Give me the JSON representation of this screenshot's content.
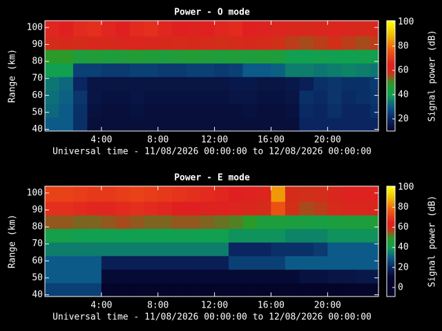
{
  "chart_data": [
    {
      "type": "heatmap",
      "title": "Power - O mode",
      "xlabel": "Universal time - 11/08/2026 00:00:00 to 12/08/2026 00:00:00",
      "ylabel": "Range (km)",
      "colorbar_label": "Signal power (dB)",
      "x_bins": [
        0,
        1,
        2,
        3,
        4,
        5,
        6,
        7,
        8,
        9,
        10,
        11,
        12,
        13,
        14,
        15,
        16,
        17,
        18,
        19,
        20,
        21,
        22,
        23,
        23.6
      ],
      "y_bins": [
        39,
        47,
        55,
        63,
        71,
        79,
        87,
        95,
        104
      ],
      "z": [
        [
          30,
          30,
          22,
          13,
          13,
          13,
          13,
          13,
          13,
          13,
          13,
          13,
          13,
          13,
          13,
          13,
          13,
          13,
          20,
          20,
          20,
          20,
          20,
          20
        ],
        [
          32,
          30,
          22,
          14,
          13,
          13,
          14,
          13,
          13,
          13,
          13,
          13,
          13,
          13,
          14,
          13,
          13,
          14,
          21,
          20,
          22,
          20,
          20,
          22
        ],
        [
          33,
          31,
          23,
          15,
          14,
          14,
          15,
          14,
          14,
          14,
          14,
          14,
          14,
          15,
          15,
          14,
          14,
          15,
          22,
          21,
          23,
          21,
          22,
          23
        ],
        [
          34,
          32,
          20,
          15,
          15,
          15,
          15,
          15,
          15,
          15,
          15,
          15,
          15,
          16,
          16,
          15,
          15,
          16,
          18,
          22,
          23,
          22,
          22,
          24
        ],
        [
          40,
          40,
          25,
          25,
          24,
          24,
          25,
          25,
          24,
          24,
          25,
          25,
          24,
          25,
          30,
          30,
          31,
          35,
          35,
          34,
          35,
          36,
          35,
          34
        ],
        [
          50,
          50,
          45,
          46,
          45,
          46,
          47,
          46,
          45,
          46,
          47,
          46,
          45,
          46,
          45,
          46,
          45,
          40,
          40,
          41,
          40,
          40,
          41,
          40
        ],
        [
          60,
          61,
          60,
          62,
          61,
          62,
          63,
          62,
          61,
          60,
          61,
          60,
          59,
          60,
          61,
          60,
          58,
          57,
          56,
          57,
          58,
          57,
          56,
          57
        ],
        [
          66,
          65,
          67,
          68,
          66,
          65,
          67,
          68,
          66,
          65,
          64,
          65,
          66,
          67,
          65,
          64,
          63,
          62,
          61,
          62,
          63,
          62,
          61,
          62
        ]
      ],
      "xlim": [
        0,
        23.6
      ],
      "xticks": [
        {
          "value": 4,
          "label": "4:00"
        },
        {
          "value": 8,
          "label": "8:00"
        },
        {
          "value": 12,
          "label": "12:00"
        },
        {
          "value": 16,
          "label": "16:00"
        },
        {
          "value": 20,
          "label": "20:00"
        }
      ],
      "ylim": [
        39,
        104
      ],
      "yticks": [
        40,
        50,
        60,
        70,
        80,
        90,
        100
      ],
      "zlim": [
        10,
        101
      ],
      "zticks": [
        20,
        40,
        60,
        80,
        100
      ],
      "colorscale": [
        [
          10,
          "#05052a"
        ],
        [
          20,
          "#0a2560"
        ],
        [
          30,
          "#0c5a88"
        ],
        [
          40,
          "#10a050"
        ],
        [
          50,
          "#2a9a28"
        ],
        [
          58,
          "#d03018"
        ],
        [
          65,
          "#e02020"
        ],
        [
          78,
          "#f06010"
        ],
        [
          90,
          "#f0c000"
        ],
        [
          101,
          "#ffff00"
        ]
      ]
    },
    {
      "type": "heatmap",
      "title": "Power - E mode",
      "xlabel": "Universal time - 11/08/2026 00:00:00 to 12/08/2026 00:00:00",
      "ylabel": "Range (km)",
      "colorbar_label": "Signal power (dB)",
      "x_bins": [
        0,
        1,
        2,
        3,
        4,
        5,
        6,
        7,
        8,
        9,
        10,
        11,
        12,
        13,
        14,
        15,
        16,
        17,
        18,
        19,
        20,
        21,
        22,
        23,
        23.6
      ],
      "y_bins": [
        39,
        47,
        55,
        63,
        71,
        79,
        87,
        95,
        104
      ],
      "z": [
        [
          25,
          25,
          25,
          25,
          10,
          10,
          10,
          10,
          10,
          10,
          10,
          10,
          10,
          10,
          10,
          10,
          10,
          10,
          10,
          10,
          10,
          10,
          10,
          10
        ],
        [
          30,
          30,
          30,
          30,
          12,
          12,
          12,
          12,
          12,
          12,
          12,
          12,
          12,
          12,
          12,
          12,
          12,
          12,
          14,
          14,
          15,
          15,
          16,
          16
        ],
        [
          30,
          30,
          30,
          30,
          18,
          18,
          18,
          18,
          18,
          18,
          18,
          18,
          18,
          25,
          25,
          25,
          25,
          30,
          30,
          30,
          30,
          30,
          30,
          30
        ],
        [
          35,
          35,
          35,
          35,
          35,
          35,
          35,
          35,
          35,
          35,
          35,
          35,
          35,
          20,
          20,
          20,
          22,
          22,
          22,
          24,
          30,
          30,
          30,
          30
        ],
        [
          42,
          42,
          40,
          40,
          40,
          40,
          40,
          40,
          40,
          40,
          40,
          40,
          40,
          38,
          38,
          38,
          38,
          36,
          36,
          36,
          38,
          38,
          38,
          38
        ],
        [
          55,
          55,
          54,
          54,
          55,
          56,
          55,
          54,
          54,
          55,
          55,
          54,
          53,
          52,
          50,
          45,
          45,
          44,
          44,
          43,
          44,
          45,
          45,
          46
        ],
        [
          68,
          68,
          67,
          66,
          66,
          67,
          68,
          67,
          66,
          65,
          65,
          64,
          64,
          63,
          62,
          60,
          75,
          58,
          56,
          57,
          60,
          62,
          62,
          62
        ],
        [
          72,
          72,
          71,
          70,
          70,
          71,
          72,
          71,
          70,
          69,
          68,
          67,
          66,
          65,
          64,
          63,
          85,
          60,
          58,
          59,
          62,
          64,
          64,
          64
        ]
      ],
      "xlim": [
        0,
        23.6
      ],
      "xticks": [
        {
          "value": 4,
          "label": "4:00"
        },
        {
          "value": 8,
          "label": "8:00"
        },
        {
          "value": 12,
          "label": "12:00"
        },
        {
          "value": 16,
          "label": "16:00"
        },
        {
          "value": 20,
          "label": "20:00"
        }
      ],
      "ylim": [
        39,
        104
      ],
      "yticks": [
        40,
        50,
        60,
        70,
        80,
        90,
        100
      ],
      "zlim": [
        -9,
        101
      ],
      "zticks": [
        0,
        20,
        40,
        60,
        80,
        100
      ],
      "colorscale": [
        [
          10,
          "#05052a"
        ],
        [
          20,
          "#0a2560"
        ],
        [
          30,
          "#0c5a88"
        ],
        [
          40,
          "#10a050"
        ],
        [
          50,
          "#2a9a28"
        ],
        [
          58,
          "#d03018"
        ],
        [
          65,
          "#e02020"
        ],
        [
          78,
          "#f06010"
        ],
        [
          90,
          "#f0c000"
        ],
        [
          101,
          "#ffff00"
        ]
      ]
    }
  ]
}
